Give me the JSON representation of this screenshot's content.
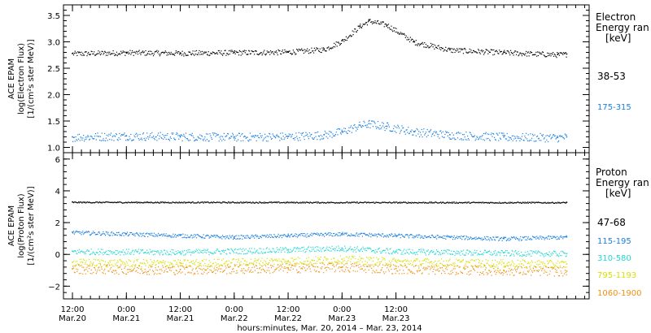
{
  "chart_data": [
    {
      "type": "scatter",
      "ylabel_lines": [
        "ACE EPAM",
        "log(Electron Flux)",
        "[1/(cm²s ster MeV)]"
      ],
      "ylim": [
        0.9,
        3.7
      ],
      "yticks": [
        1.0,
        1.5,
        2.0,
        2.5,
        3.0,
        3.5
      ],
      "ytick_labels": [
        "1.0",
        "1.5",
        "2.0",
        "2.5",
        "3.0",
        "3.5"
      ],
      "legend_title": [
        "Electron",
        "Energy ran",
        "[keV]"
      ],
      "series": [
        {
          "name": "38-53",
          "color": "#000000",
          "x": [
            0,
            12,
            24,
            36,
            48,
            56,
            60,
            64,
            66,
            70,
            76,
            84,
            96,
            108,
            110
          ],
          "y": [
            2.78,
            2.8,
            2.79,
            2.8,
            2.81,
            2.86,
            3.02,
            3.3,
            3.4,
            3.32,
            3.0,
            2.85,
            2.8,
            2.76,
            2.77
          ]
        },
        {
          "name": "175-315",
          "color": "#1a7fe0",
          "x": [
            0,
            12,
            24,
            36,
            48,
            56,
            60,
            64,
            66,
            70,
            76,
            84,
            96,
            108,
            110
          ],
          "y": [
            1.2,
            1.22,
            1.21,
            1.2,
            1.21,
            1.24,
            1.3,
            1.42,
            1.45,
            1.4,
            1.3,
            1.24,
            1.2,
            1.19,
            1.2
          ]
        }
      ]
    },
    {
      "type": "scatter",
      "ylabel_lines": [
        "ACE EPAM",
        "log(Proton Flux)",
        "[1/(cm²s ster MeV)]"
      ],
      "ylim": [
        -2.8,
        6.4
      ],
      "yticks": [
        -2,
        0,
        2,
        4,
        6
      ],
      "ytick_labels": [
        "−2",
        "0",
        "2",
        "4",
        "6"
      ],
      "legend_title": [
        "Proton",
        "Energy ran",
        "[keV]"
      ],
      "series": [
        {
          "name": "47-68",
          "color": "#000000",
          "x": [
            0,
            110
          ],
          "y": [
            3.3,
            3.28
          ]
        },
        {
          "name": "115-195",
          "color": "#1a7fe0",
          "x": [
            0,
            12,
            24,
            36,
            48,
            60,
            72,
            84,
            96,
            110
          ],
          "y": [
            1.4,
            1.3,
            1.2,
            1.1,
            1.2,
            1.3,
            1.2,
            1.1,
            1.0,
            1.1
          ]
        },
        {
          "name": "310-580",
          "color": "#22d8d0",
          "x": [
            0,
            24,
            48,
            60,
            72,
            96,
            110
          ],
          "y": [
            0.2,
            0.15,
            0.3,
            0.4,
            0.2,
            0.1,
            0.05
          ]
        },
        {
          "name": "795-1193",
          "color": "#d8e000",
          "x": [
            0,
            24,
            48,
            60,
            72,
            96,
            110
          ],
          "y": [
            -0.5,
            -0.55,
            -0.4,
            -0.3,
            -0.45,
            -0.55,
            -0.6
          ]
        },
        {
          "name": "1060-1900",
          "color": "#f09010",
          "x": [
            0,
            24,
            48,
            60,
            72,
            96,
            110
          ],
          "y": [
            -0.9,
            -0.95,
            -0.85,
            -0.8,
            -0.9,
            -1.0,
            -1.05
          ]
        }
      ]
    }
  ],
  "x_axis": {
    "xlim": [
      -2,
      115
    ],
    "ticks": [
      {
        "x": 0,
        "time": "12:00",
        "date": "Mar.20"
      },
      {
        "x": 12,
        "time": "0:00",
        "date": "Mar.21"
      },
      {
        "x": 24,
        "time": "12:00",
        "date": "Mar.21"
      },
      {
        "x": 36,
        "time": "0:00",
        "date": "Mar.22"
      },
      {
        "x": 48,
        "time": "12:00",
        "date": "Mar.22"
      },
      {
        "x": 60,
        "time": "0:00",
        "date": "Mar.23"
      },
      {
        "x": 72,
        "time": "12:00",
        "date": "Mar.23"
      }
    ],
    "label": "hours:minutes, Mar. 20, 2014 – Mar. 23, 2014"
  }
}
